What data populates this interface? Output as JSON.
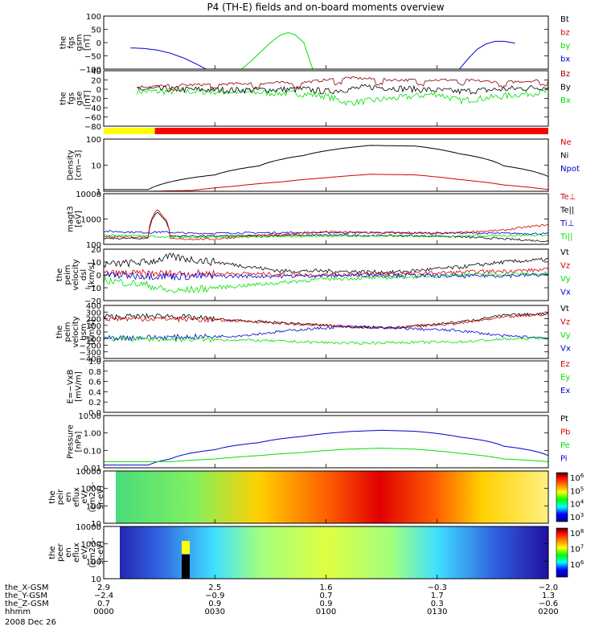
{
  "title": "P4 (TH-E) fields and on-board moments overview",
  "colors": {
    "black": "#000000",
    "red": "#d40000",
    "green": "#00e000",
    "blue": "#0000d0",
    "dark_red": "#8b0000",
    "yellow": "#ffff00",
    "bar_red": "#ff0000"
  },
  "chart_data": [
    {
      "type": "line",
      "panel": "fgs_gsm",
      "ylabel": [
        "the",
        "fgs",
        "gsm",
        "[nT]"
      ],
      "yticks": [
        "100",
        "50",
        "0",
        "−50",
        "−100"
      ],
      "ylim": [
        -100,
        100
      ],
      "legend": [
        "Bt",
        "bz",
        "by",
        "bx"
      ],
      "legend_colors": [
        "#000000",
        "#d40000",
        "#00e000",
        "#0000d0"
      ],
      "series": [
        {
          "name": "by",
          "color": "#00e000",
          "x": [
            0.62,
            0.66,
            0.7,
            0.74,
            0.78,
            0.8,
            0.83,
            0.86,
            0.9,
            0.94
          ],
          "y": [
            -100,
            -72,
            -40,
            -8,
            20,
            30,
            38,
            30,
            0,
            -100
          ]
        },
        {
          "name": "bx",
          "color": "#0000d0",
          "x": [
            0.12,
            0.18,
            0.24,
            0.3,
            0.36,
            0.42,
            0.46
          ],
          "y": [
            -20,
            -22,
            -28,
            -40,
            -58,
            -82,
            -100
          ]
        },
        {
          "name": "bx",
          "color": "#0000d0",
          "x": [
            1.6,
            1.64,
            1.68,
            1.72,
            1.76,
            1.8,
            1.85
          ],
          "y": [
            -100,
            -60,
            -25,
            -5,
            5,
            5,
            -2
          ]
        }
      ]
    },
    {
      "type": "line",
      "panel": "fgs_gse",
      "ylabel": [
        "the",
        "fgs",
        "gse",
        "[nT]"
      ],
      "yticks": [
        "40",
        "20",
        "0",
        "−20",
        "−40",
        "−60",
        "−80"
      ],
      "ylim": [
        -80,
        40
      ],
      "legend": [
        "Bz",
        "By",
        "Bx"
      ],
      "legend_colors": [
        "#8b0000",
        "#000000",
        "#00e000"
      ]
    },
    {
      "type": "bar",
      "panel": "mode_bar",
      "segments": [
        {
          "color": "#ffff00",
          "start": 0.0,
          "end": 0.23
        },
        {
          "color": "#ff0000",
          "start": 0.23,
          "end": 2.0
        }
      ]
    },
    {
      "type": "line",
      "panel": "density",
      "ylabel": [
        "Density",
        "[cm−3]"
      ],
      "yticks": [
        "100",
        "10",
        "1"
      ],
      "yscale": "log",
      "ylim": [
        0.5,
        150
      ],
      "legend": [
        "Ne",
        "Ni",
        "Npot"
      ],
      "legend_colors": [
        "#d40000",
        "#000000",
        "#0000d0"
      ],
      "series": [
        {
          "name": "Ni",
          "color": "#000000",
          "x": [
            0.0,
            0.2,
            0.3,
            0.5,
            0.7,
            0.9,
            1.05,
            1.2,
            1.4,
            1.6,
            1.8,
            2.0
          ],
          "y": [
            0.6,
            0.6,
            1.4,
            3,
            8,
            25,
            50,
            75,
            70,
            30,
            8,
            2.5
          ]
        },
        {
          "name": "Ne",
          "color": "#d40000",
          "x": [
            0.0,
            0.2,
            0.4,
            0.6,
            0.8,
            1.0,
            1.2,
            1.4,
            1.6,
            1.8,
            2.0
          ],
          "y": [
            0.5,
            0.5,
            0.55,
            0.9,
            1.4,
            2.2,
            3.2,
            3.0,
            1.8,
            1.0,
            0.6
          ]
        }
      ]
    },
    {
      "type": "line",
      "panel": "temperature",
      "ylabel": [
        "magt3",
        "[eV]"
      ],
      "yticks": [
        "10000",
        "1000",
        "100"
      ],
      "yscale": "log",
      "ylim": [
        90,
        12000
      ],
      "legend": [
        "Te⊥",
        "Te||",
        "Ti⊥",
        "Ti||"
      ],
      "legend_colors": [
        "#d40000",
        "#000000",
        "#0000d0",
        "#00e000"
      ],
      "series": [
        {
          "name": "Ti⊥",
          "color": "#0000d0",
          "x": [
            0.0,
            0.2,
            0.25,
            0.4,
            0.8,
            1.2,
            1.6,
            2.0
          ],
          "y": [
            320,
            280,
            300,
            260,
            280,
            280,
            270,
            250
          ]
        },
        {
          "name": "Te||",
          "color": "#000000",
          "x": [
            0.0,
            0.2,
            0.24,
            0.3,
            0.5,
            1.0,
            1.5,
            2.0
          ],
          "y": [
            160,
            160,
            2000,
            200,
            200,
            220,
            200,
            120
          ]
        },
        {
          "name": "Te⊥",
          "color": "#d40000",
          "x": [
            0.0,
            0.2,
            0.24,
            0.3,
            0.5,
            1.0,
            1.5,
            1.8,
            2.0
          ],
          "y": [
            200,
            180,
            2500,
            150,
            150,
            300,
            250,
            350,
            600
          ]
        },
        {
          "name": "Ti||",
          "color": "#00e000",
          "x": [
            0.0,
            0.2,
            0.3,
            0.6,
            1.0,
            1.4,
            1.8,
            2.0
          ],
          "y": [
            220,
            200,
            180,
            180,
            200,
            200,
            210,
            220
          ]
        }
      ]
    },
    {
      "type": "line",
      "panel": "peim_dsl",
      "ylabel": [
        "the",
        "peim",
        "velocity",
        "dsl",
        "[km/s]"
      ],
      "yticks": [
        "20",
        "10",
        "0",
        "−10",
        "−20"
      ],
      "ylim": [
        -20,
        20
      ],
      "legend": [
        "Vt",
        "Vz",
        "Vy",
        "Vx"
      ],
      "legend_colors": [
        "#000000",
        "#d40000",
        "#00e000",
        "#0000d0"
      ],
      "series": [
        {
          "name": "Vt",
          "color": "#000000",
          "x": [
            0.0,
            0.2,
            0.3,
            0.5,
            0.8,
            1.0,
            1.3,
            1.6,
            1.8,
            2.0
          ],
          "y": [
            8,
            10,
            14,
            10,
            3,
            3,
            2,
            6,
            10,
            12
          ]
        },
        {
          "name": "Vz",
          "color": "#d40000",
          "x": [
            0.0,
            0.3,
            0.6,
            1.0,
            1.4,
            1.8,
            2.0
          ],
          "y": [
            1,
            1,
            1,
            0,
            1,
            3,
            4
          ]
        },
        {
          "name": "Vy",
          "color": "#00e000",
          "x": [
            0.0,
            0.2,
            0.3,
            0.5,
            0.8,
            1.0,
            1.3,
            1.6,
            2.0
          ],
          "y": [
            -4,
            -8,
            -13,
            -10,
            -6,
            -3,
            -2,
            0,
            1
          ]
        },
        {
          "name": "Vx",
          "color": "#0000d0",
          "x": [
            0.0,
            0.3,
            0.8,
            1.2,
            1.6,
            2.0
          ],
          "y": [
            0,
            -1,
            -1,
            0,
            -1,
            0
          ]
        }
      ]
    },
    {
      "type": "line",
      "panel": "peim_gsm",
      "ylabel": [
        "the",
        "peim",
        "velocity",
        "gsm",
        "[km/s]"
      ],
      "yticks": [
        "400",
        "300",
        "200",
        "100",
        "0",
        "−100",
        "−200",
        "−300",
        "−400"
      ],
      "ylim": [
        -400,
        400
      ],
      "legend": [
        "Vt",
        "Vz",
        "Vy",
        "Vx"
      ],
      "legend_colors": [
        "#000000",
        "#d40000",
        "#00e000",
        "#0000d0"
      ],
      "series": [
        {
          "name": "Vt",
          "color": "#000000",
          "x": [
            0.0,
            0.3,
            0.6,
            0.9,
            1.1,
            1.3,
            1.6,
            1.8,
            2.0
          ],
          "y": [
            230,
            240,
            170,
            120,
            80,
            60,
            150,
            250,
            280
          ]
        },
        {
          "name": "Vz",
          "color": "#d40000",
          "x": [
            0.0,
            0.3,
            0.6,
            0.9,
            1.1,
            1.3,
            1.6,
            1.8,
            2.0
          ],
          "y": [
            200,
            200,
            170,
            110,
            80,
            60,
            130,
            220,
            270
          ]
        },
        {
          "name": "Vx",
          "color": "#0000d0",
          "x": [
            0.0,
            0.3,
            0.6,
            0.9,
            1.1,
            1.3,
            1.6,
            1.8,
            2.0
          ],
          "y": [
            -90,
            -80,
            -60,
            40,
            80,
            60,
            20,
            -60,
            -90
          ]
        },
        {
          "name": "Vy",
          "color": "#00e000",
          "x": [
            0.0,
            0.3,
            0.6,
            0.9,
            1.1,
            1.3,
            1.6,
            1.8,
            2.0
          ],
          "y": [
            -100,
            -110,
            -120,
            -150,
            -170,
            -160,
            -150,
            -110,
            -90
          ]
        }
      ]
    },
    {
      "type": "line",
      "panel": "efield",
      "ylabel": [
        "E=−VxB",
        "[mV/m]"
      ],
      "yticks": [
        "1.0",
        "0.8",
        "0.6",
        "0.4",
        "0.2",
        "0.0"
      ],
      "ylim": [
        0,
        1
      ],
      "legend": [
        "Ez",
        "Ey",
        "Ex"
      ],
      "legend_colors": [
        "#d40000",
        "#00e000",
        "#0000d0"
      ]
    },
    {
      "type": "line",
      "panel": "pressure",
      "ylabel": [
        "Pressure",
        "[nPa]"
      ],
      "yticks": [
        "10.00",
        "1.00",
        "0.10",
        "0.01"
      ],
      "yscale": "log",
      "ylim": [
        0.008,
        20
      ],
      "legend": [
        "Pt",
        "Pb",
        "Pe",
        "Pi"
      ],
      "legend_colors": [
        "#000000",
        "#d40000",
        "#00e000",
        "#0000d0"
      ],
      "series": [
        {
          "name": "Pi",
          "color": "#0000d0",
          "x": [
            0.0,
            0.2,
            0.3,
            0.5,
            0.7,
            0.9,
            1.1,
            1.25,
            1.4,
            1.6,
            1.8,
            2.0
          ],
          "y": [
            0.012,
            0.012,
            0.03,
            0.12,
            0.35,
            0.9,
            1.8,
            2.2,
            1.9,
            0.8,
            0.2,
            0.05
          ]
        },
        {
          "name": "Pe",
          "color": "#00e000",
          "x": [
            0.0,
            0.2,
            0.3,
            0.5,
            0.7,
            0.9,
            1.1,
            1.25,
            1.4,
            1.6,
            1.8,
            2.0
          ],
          "y": [
            0.02,
            0.02,
            0.02,
            0.03,
            0.05,
            0.08,
            0.13,
            0.15,
            0.13,
            0.07,
            0.03,
            0.02
          ]
        }
      ]
    },
    {
      "type": "heatmap",
      "panel": "peir_spectrogram",
      "ylabel": [
        "the",
        "peir",
        "en",
        "eflux",
        "eV/",
        "(cm2-s-",
        "sr-eV)"
      ],
      "yticks": [
        "10000",
        "1000",
        "100",
        "10"
      ],
      "colorbar_ticks": [
        {
          "base": "10",
          "exp": "6"
        },
        {
          "base": "10",
          "exp": "5"
        },
        {
          "base": "10",
          "exp": "4"
        },
        {
          "base": "10",
          "exp": "3"
        }
      ]
    },
    {
      "type": "heatmap",
      "panel": "peer_spectrogram",
      "ylabel": [
        "the",
        "peer",
        "en",
        "eflux",
        "eV/",
        "(cm2-s-",
        "sr-eV)"
      ],
      "yticks": [
        "10000",
        "1000",
        "100",
        "10"
      ],
      "colorbar_ticks": [
        {
          "base": "10",
          "exp": "8"
        },
        {
          "base": "10",
          "exp": "7"
        },
        {
          "base": "10",
          "exp": "6"
        }
      ]
    }
  ],
  "x_axis": {
    "row_labels": [
      "the_X-GSM",
      "the_Y-GSM",
      "the_Z-GSM",
      "hhmm"
    ],
    "date": "2008 Dec 26",
    "columns": [
      [
        "2.9",
        "−2.4",
        "0.7",
        "0000"
      ],
      [
        "2.5",
        "−0.9",
        "0.9",
        "0030"
      ],
      [
        "1.6",
        "0.7",
        "0.9",
        "0100"
      ],
      [
        "−0.3",
        "1.7",
        "0.3",
        "0130"
      ],
      [
        "−2.0",
        "1.3",
        "−0.6",
        "0200"
      ]
    ]
  }
}
